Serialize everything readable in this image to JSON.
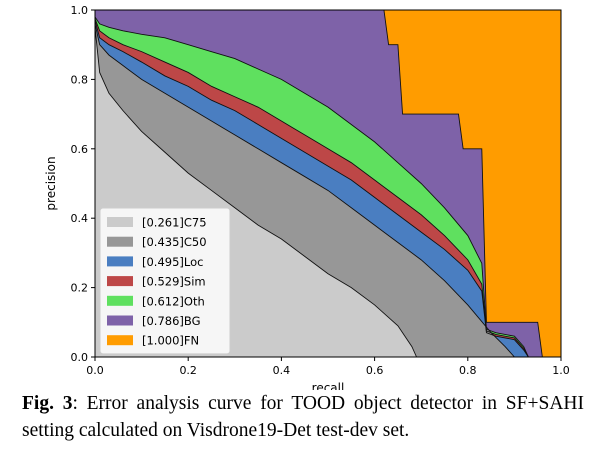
{
  "chart_data": {
    "type": "area",
    "xlabel": "recall",
    "ylabel": "precision",
    "xlim": [
      0.0,
      1.0
    ],
    "ylim": [
      0.0,
      1.0
    ],
    "x_ticks": [
      "0.0",
      "0.2",
      "0.4",
      "0.6",
      "0.8",
      "1.0"
    ],
    "y_ticks": [
      "0.0",
      "0.2",
      "0.4",
      "0.6",
      "0.8",
      "1.0"
    ],
    "grid": false,
    "legend_position": "lower-left",
    "series": [
      {
        "name": "[0.261]C75",
        "color": "#cbcbcb",
        "points": [
          [
            0,
            0.95
          ],
          [
            0.01,
            0.82
          ],
          [
            0.03,
            0.76
          ],
          [
            0.06,
            0.71
          ],
          [
            0.1,
            0.65
          ],
          [
            0.15,
            0.59
          ],
          [
            0.2,
            0.53
          ],
          [
            0.25,
            0.48
          ],
          [
            0.3,
            0.43
          ],
          [
            0.35,
            0.38
          ],
          [
            0.4,
            0.34
          ],
          [
            0.45,
            0.29
          ],
          [
            0.5,
            0.24
          ],
          [
            0.55,
            0.2
          ],
          [
            0.6,
            0.15
          ],
          [
            0.65,
            0.09
          ],
          [
            0.68,
            0.03
          ],
          [
            0.69,
            0.0
          ]
        ]
      },
      {
        "name": "[0.435]C50",
        "color": "#979797",
        "points": [
          [
            0,
            0.96
          ],
          [
            0.01,
            0.9
          ],
          [
            0.03,
            0.87
          ],
          [
            0.06,
            0.84
          ],
          [
            0.1,
            0.8
          ],
          [
            0.15,
            0.76
          ],
          [
            0.2,
            0.72
          ],
          [
            0.25,
            0.68
          ],
          [
            0.3,
            0.64
          ],
          [
            0.35,
            0.6
          ],
          [
            0.4,
            0.56
          ],
          [
            0.45,
            0.52
          ],
          [
            0.5,
            0.48
          ],
          [
            0.55,
            0.43
          ],
          [
            0.6,
            0.38
          ],
          [
            0.65,
            0.33
          ],
          [
            0.7,
            0.28
          ],
          [
            0.75,
            0.22
          ],
          [
            0.8,
            0.15
          ],
          [
            0.85,
            0.07
          ],
          [
            0.88,
            0.03
          ],
          [
            0.9,
            0.0
          ]
        ]
      },
      {
        "name": "[0.495]Loc",
        "color": "#4a7ec1",
        "points": [
          [
            0,
            0.97
          ],
          [
            0.01,
            0.92
          ],
          [
            0.03,
            0.9
          ],
          [
            0.06,
            0.88
          ],
          [
            0.1,
            0.85
          ],
          [
            0.15,
            0.81
          ],
          [
            0.2,
            0.78
          ],
          [
            0.25,
            0.74
          ],
          [
            0.3,
            0.71
          ],
          [
            0.35,
            0.67
          ],
          [
            0.4,
            0.63
          ],
          [
            0.45,
            0.59
          ],
          [
            0.5,
            0.55
          ],
          [
            0.55,
            0.51
          ],
          [
            0.6,
            0.46
          ],
          [
            0.65,
            0.41
          ],
          [
            0.7,
            0.36
          ],
          [
            0.75,
            0.31
          ],
          [
            0.8,
            0.25
          ],
          [
            0.83,
            0.19
          ],
          [
            0.84,
            0.07
          ],
          [
            0.86,
            0.06
          ],
          [
            0.9,
            0.05
          ],
          [
            0.92,
            0.02
          ],
          [
            0.93,
            0.0
          ]
        ]
      },
      {
        "name": "[0.529]Sim",
        "color": "#bd4747",
        "points": [
          [
            0,
            0.975
          ],
          [
            0.01,
            0.94
          ],
          [
            0.03,
            0.92
          ],
          [
            0.06,
            0.9
          ],
          [
            0.1,
            0.88
          ],
          [
            0.15,
            0.85
          ],
          [
            0.2,
            0.82
          ],
          [
            0.25,
            0.78
          ],
          [
            0.3,
            0.75
          ],
          [
            0.35,
            0.72
          ],
          [
            0.4,
            0.68
          ],
          [
            0.45,
            0.64
          ],
          [
            0.5,
            0.6
          ],
          [
            0.55,
            0.56
          ],
          [
            0.6,
            0.51
          ],
          [
            0.65,
            0.46
          ],
          [
            0.7,
            0.41
          ],
          [
            0.75,
            0.35
          ],
          [
            0.8,
            0.28
          ],
          [
            0.83,
            0.21
          ],
          [
            0.84,
            0.075
          ],
          [
            0.86,
            0.065
          ],
          [
            0.9,
            0.055
          ],
          [
            0.92,
            0.025
          ],
          [
            0.93,
            0.0
          ]
        ]
      },
      {
        "name": "[0.612]Oth",
        "color": "#5fe05f",
        "points": [
          [
            0,
            0.98
          ],
          [
            0.01,
            0.96
          ],
          [
            0.03,
            0.95
          ],
          [
            0.06,
            0.94
          ],
          [
            0.1,
            0.93
          ],
          [
            0.15,
            0.92
          ],
          [
            0.2,
            0.9
          ],
          [
            0.25,
            0.88
          ],
          [
            0.3,
            0.86
          ],
          [
            0.35,
            0.83
          ],
          [
            0.4,
            0.8
          ],
          [
            0.45,
            0.76
          ],
          [
            0.5,
            0.72
          ],
          [
            0.55,
            0.67
          ],
          [
            0.6,
            0.62
          ],
          [
            0.65,
            0.56
          ],
          [
            0.7,
            0.5
          ],
          [
            0.75,
            0.43
          ],
          [
            0.8,
            0.35
          ],
          [
            0.83,
            0.27
          ],
          [
            0.84,
            0.08
          ],
          [
            0.86,
            0.07
          ],
          [
            0.9,
            0.06
          ],
          [
            0.92,
            0.03
          ],
          [
            0.93,
            0.0
          ]
        ]
      },
      {
        "name": "[0.786]BG",
        "color": "#7e62a8",
        "points": [
          [
            0,
            1.0
          ],
          [
            0.62,
            1.0
          ],
          [
            0.63,
            0.9
          ],
          [
            0.65,
            0.9
          ],
          [
            0.66,
            0.7
          ],
          [
            0.78,
            0.7
          ],
          [
            0.79,
            0.6
          ],
          [
            0.83,
            0.6
          ],
          [
            0.84,
            0.1
          ],
          [
            0.95,
            0.1
          ],
          [
            0.96,
            0.0
          ]
        ]
      },
      {
        "name": "[1.000]FN",
        "color": "#ff9c00",
        "points": [
          [
            0,
            1.0
          ],
          [
            1.0,
            1.0
          ],
          [
            1.0,
            0.0
          ]
        ]
      }
    ]
  },
  "caption": {
    "label": "Fig. 3",
    "text": ":  Error analysis curve for TOOD object detector in SF+SAHI setting calculated on Visdrone19-Det test-dev set."
  }
}
